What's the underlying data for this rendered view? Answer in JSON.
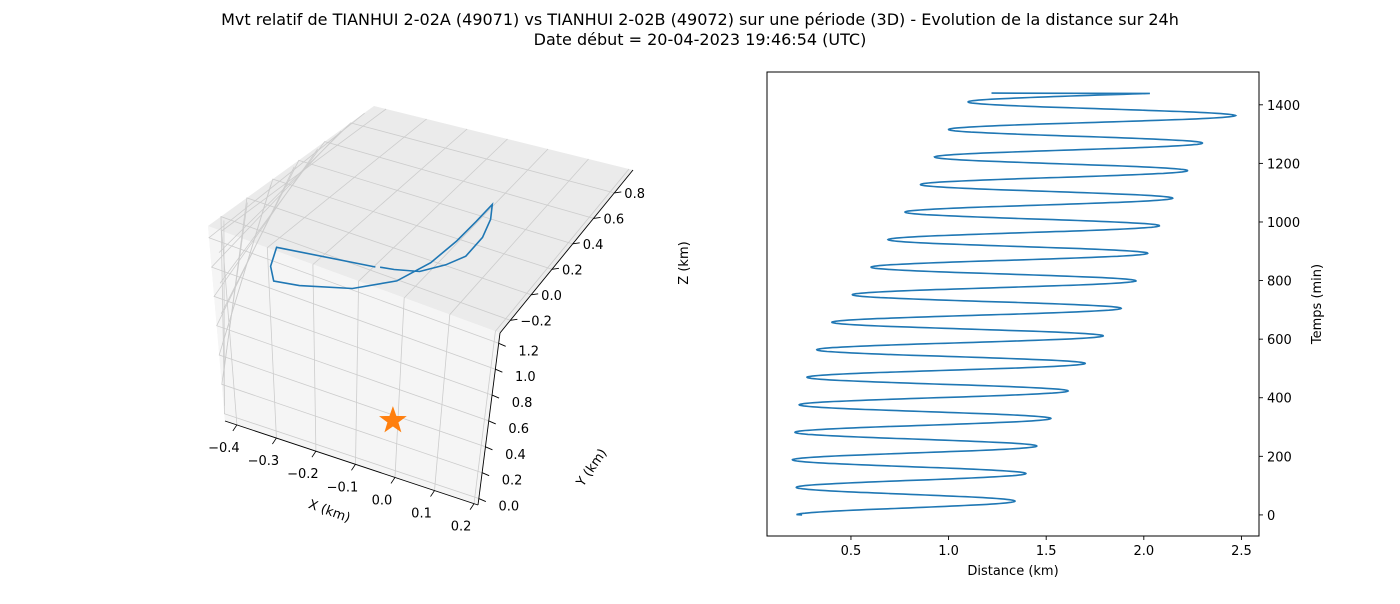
{
  "title": "Mvt relatif de TIANHUI 2-02A (49071) vs TIANHUI 2-02B (49072) sur une période (3D) - Evolution de la distance sur 24h",
  "subtitle": "Date début = 20-04-2023 19:46:54 (UTC)",
  "colors": {
    "series": "#1f77b4",
    "marker": "#ff7f0e",
    "pane": "#f2f2f2",
    "grid": "#cccccc"
  },
  "chart_data": [
    {
      "type": "line",
      "projection": "3d",
      "xlabel": "X (km)",
      "ylabel": "Y (km)",
      "zlabel": "Z (km)",
      "xticks": [
        "−0.4",
        "−0.3",
        "−0.2",
        "−0.1",
        "0.0",
        "0.1",
        "0.2"
      ],
      "yticks": [
        "0.0",
        "0.2",
        "0.4",
        "0.6",
        "0.8",
        "1.0",
        "1.2"
      ],
      "zticks": [
        "−0.2",
        "0.0",
        "0.2",
        "0.4",
        "0.6",
        "0.8"
      ],
      "xlim": [
        -0.43,
        0.21
      ],
      "ylim": [
        -0.05,
        1.28
      ],
      "zlim": [
        -0.3,
        0.98
      ],
      "grid": true,
      "marker": {
        "shape": "star",
        "x": 0.0,
        "y": 0.0,
        "z": 0.0
      },
      "series": [
        {
          "x": [
            -0.12,
            -0.33,
            -0.33,
            -0.33,
            -0.29,
            -0.18,
            -0.08,
            0.0,
            0.06,
            0.1,
            0.12,
            0.1,
            0.07,
            0.03,
            -0.01,
            -0.05,
            -0.09,
            -0.11
          ],
          "y": [
            1.15,
            1.1,
            1.0,
            0.85,
            0.72,
            0.6,
            0.5,
            0.43,
            0.4,
            0.4,
            0.44,
            0.52,
            0.62,
            0.75,
            0.88,
            1.0,
            1.1,
            1.16
          ],
          "z": [
            -0.05,
            -0.1,
            -0.15,
            -0.1,
            0.05,
            0.25,
            0.47,
            0.7,
            0.9,
            1.05,
            1.15,
            1.0,
            0.8,
            0.55,
            0.35,
            0.15,
            0.02,
            -0.05
          ]
        }
      ]
    },
    {
      "type": "line",
      "xlabel": "Distance (km)",
      "ylabel": "Temps (min)",
      "xlim": [
        0.07,
        2.59
      ],
      "ylim": [
        -72,
        1512
      ],
      "xticks": [
        0.5,
        1.0,
        1.5,
        2.0,
        2.5
      ],
      "yticks": [
        0,
        200,
        400,
        600,
        800,
        1000,
        1200,
        1400
      ],
      "grid": false,
      "y_axis_position": "right",
      "oscillation": {
        "period_min": 94,
        "t_end_min": 1440,
        "t_first_max_min": 47,
        "start_distance_km": 0.25,
        "end_distance_km": 1.22,
        "max_envelope": [
          [
            47,
            1.34
          ],
          [
            282,
            1.48
          ],
          [
            517,
            1.7
          ],
          [
            752,
            1.93
          ],
          [
            1034,
            2.11
          ],
          [
            1269,
            2.3
          ],
          [
            1363,
            2.47
          ]
        ],
        "min_envelope": [
          [
            94,
            0.22
          ],
          [
            188,
            0.2
          ],
          [
            329,
            0.22
          ],
          [
            423,
            0.25
          ],
          [
            611,
            0.35
          ],
          [
            799,
            0.56
          ],
          [
            1081,
            0.82
          ],
          [
            1316,
            1.0
          ],
          [
            1410,
            1.1
          ]
        ]
      }
    }
  ]
}
